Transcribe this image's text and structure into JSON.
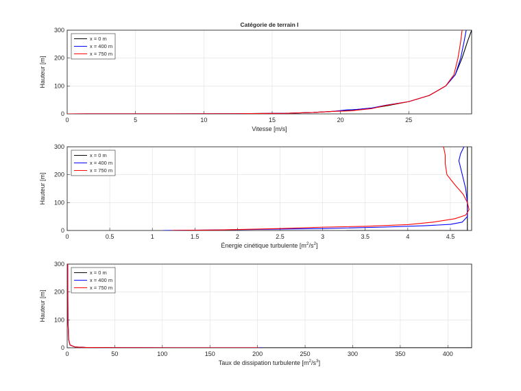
{
  "chart_data": [
    {
      "type": "line",
      "title": "Catégorie de terrain I",
      "xlabel": "Vitesse   [m/s]",
      "ylabel": "Hauteur [m]",
      "xlim": [
        0,
        29.6
      ],
      "ylim": [
        0,
        300
      ],
      "xticks": [
        "0",
        "5",
        "10",
        "15",
        "20",
        "25"
      ],
      "xtick_values": [
        0,
        5,
        10,
        15,
        20,
        25
      ],
      "yticks": [
        "0",
        "100",
        "200",
        "300"
      ],
      "ytick_values": [
        0,
        100,
        200,
        300
      ],
      "grid": true,
      "legend_position": "top-left",
      "series": [
        {
          "name": "x = 0 m",
          "color": "#000000",
          "points": [
            [
              0,
              0
            ],
            [
              12,
              0.5
            ],
            [
              16,
              2
            ],
            [
              18,
              5
            ],
            [
              19.5,
              9
            ],
            [
              20.5,
              13
            ],
            [
              21.5,
              17
            ],
            [
              22.5,
              22
            ],
            [
              23.5,
              30
            ],
            [
              25,
              44
            ],
            [
              26.5,
              66
            ],
            [
              27.7,
              100
            ],
            [
              28.4,
              140
            ],
            [
              28.9,
              200
            ],
            [
              29.3,
              260
            ],
            [
              29.6,
              300
            ]
          ]
        },
        {
          "name": "x = 400 m",
          "color": "#0000ff",
          "points": [
            [
              0,
              0
            ],
            [
              12,
              0.5
            ],
            [
              16,
              2
            ],
            [
              18,
              5
            ],
            [
              19.5,
              9
            ],
            [
              20.4,
              14
            ],
            [
              21.2,
              16
            ],
            [
              22.3,
              21
            ],
            [
              23.3,
              31
            ],
            [
              25,
              44
            ],
            [
              26.5,
              66
            ],
            [
              27.7,
              100
            ],
            [
              28.4,
              140
            ],
            [
              28.8,
              200
            ],
            [
              29.05,
              260
            ],
            [
              29.2,
              300
            ]
          ]
        },
        {
          "name": "x = 750 m",
          "color": "#ff0000",
          "points": [
            [
              0,
              0
            ],
            [
              12,
              0.5
            ],
            [
              16,
              2
            ],
            [
              18,
              5
            ],
            [
              19.5,
              9
            ],
            [
              20.8,
              11
            ],
            [
              21.5,
              15
            ],
            [
              22.3,
              19
            ],
            [
              23.2,
              29
            ],
            [
              25,
              44
            ],
            [
              26.5,
              66
            ],
            [
              27.7,
              100
            ],
            [
              28.3,
              140
            ],
            [
              28.6,
              200
            ],
            [
              28.8,
              260
            ],
            [
              28.9,
              300
            ]
          ]
        }
      ]
    },
    {
      "type": "line",
      "title": "",
      "xlabel": "Énergie cinétique turbulente  [m²/s²]",
      "xlabel_main": "Énergie cinétique turbulente  [m",
      "xlabel_sup1": "2",
      "xlabel_mid": "/s",
      "xlabel_sup2": "2",
      "xlabel_end": "]",
      "ylabel": "Hauteur [m]",
      "xlim": [
        0,
        4.75
      ],
      "ylim": [
        0,
        300
      ],
      "xticks": [
        "0",
        "0.5",
        "1",
        "1.5",
        "2",
        "2.5",
        "3",
        "3.5",
        "4",
        "4.5"
      ],
      "xtick_values": [
        0,
        0.5,
        1,
        1.5,
        2,
        2.5,
        3,
        3.5,
        4,
        4.5
      ],
      "yticks": [
        "0",
        "100",
        "200",
        "300"
      ],
      "ytick_values": [
        0,
        100,
        200,
        300
      ],
      "grid": true,
      "legend_position": "top-left",
      "series": [
        {
          "name": "x = 0 m",
          "color": "#000000",
          "points": [
            [
              3.28,
              0
            ],
            [
              4.7,
              0
            ],
            [
              4.7,
              300
            ]
          ]
        },
        {
          "name": "x = 400 m",
          "color": "#0000ff",
          "points": [
            [
              1.12,
              0
            ],
            [
              2,
              3
            ],
            [
              3,
              7
            ],
            [
              3.7,
              12
            ],
            [
              4.2,
              17
            ],
            [
              4.5,
              22
            ],
            [
              4.64,
              30
            ],
            [
              4.7,
              50
            ],
            [
              4.7,
              100
            ],
            [
              4.68,
              150
            ],
            [
              4.64,
              200
            ],
            [
              4.6,
              250
            ],
            [
              4.62,
              275
            ],
            [
              4.66,
              300
            ]
          ]
        },
        {
          "name": "x = 750 m",
          "color": "#ff0000",
          "points": [
            [
              1.22,
              0
            ],
            [
              1.8,
              2
            ],
            [
              2.5,
              7
            ],
            [
              3,
              12
            ],
            [
              3.5,
              15
            ],
            [
              4,
              21
            ],
            [
              4.3,
              30
            ],
            [
              4.55,
              42
            ],
            [
              4.68,
              55
            ],
            [
              4.72,
              75
            ],
            [
              4.7,
              100
            ],
            [
              4.65,
              130
            ],
            [
              4.55,
              165
            ],
            [
              4.46,
              200
            ],
            [
              4.44,
              240
            ],
            [
              4.44,
              270
            ],
            [
              4.42,
              300
            ]
          ]
        }
      ]
    },
    {
      "type": "line",
      "title": "",
      "xlabel": "Taux de dissipation turbulente  [m²/s³]",
      "xlabel_main": "Taux de dissipation turbulente  [m",
      "xlabel_sup1": "2",
      "xlabel_mid": "/s",
      "xlabel_sup2": "3",
      "xlabel_end": "]",
      "ylabel": "Hauteur [m]",
      "xlim": [
        0,
        425
      ],
      "ylim": [
        0,
        300
      ],
      "xticks": [
        "0",
        "50",
        "100",
        "150",
        "200",
        "250",
        "300",
        "350",
        "400"
      ],
      "xtick_values": [
        0,
        50,
        100,
        150,
        200,
        250,
        300,
        350,
        400
      ],
      "yticks": [
        "0",
        "100",
        "200",
        "300"
      ],
      "ytick_values": [
        0,
        100,
        200,
        300
      ],
      "grid": true,
      "legend_position": "top-left",
      "series": [
        {
          "name": "x = 0 m",
          "color": "#000000",
          "points": [
            [
              0.5,
              300
            ],
            [
              0.8,
              100
            ],
            [
              1.5,
              30
            ],
            [
              3,
              10
            ],
            [
              8,
              3
            ],
            [
              20,
              1
            ],
            [
              60,
              0.4
            ],
            [
              150,
              0.2
            ],
            [
              250,
              0.05
            ],
            [
              425,
              0.05
            ]
          ]
        },
        {
          "name": "x = 400 m",
          "color": "#0000ff",
          "points": [
            [
              0.5,
              300
            ],
            [
              0.8,
              100
            ],
            [
              1.5,
              30
            ],
            [
              3,
              10
            ],
            [
              8,
              3
            ],
            [
              20,
              1
            ],
            [
              60,
              0.4
            ],
            [
              150,
              0.2
            ],
            [
              205,
              0.1
            ]
          ]
        },
        {
          "name": "x = 750 m",
          "color": "#ff0000",
          "points": [
            [
              0.6,
              300
            ],
            [
              0.9,
              100
            ],
            [
              1.6,
              30
            ],
            [
              3,
              10
            ],
            [
              8,
              3
            ],
            [
              20,
              1
            ],
            [
              60,
              0.4
            ],
            [
              150,
              0.2
            ],
            [
              202,
              0.1
            ]
          ]
        }
      ]
    }
  ]
}
